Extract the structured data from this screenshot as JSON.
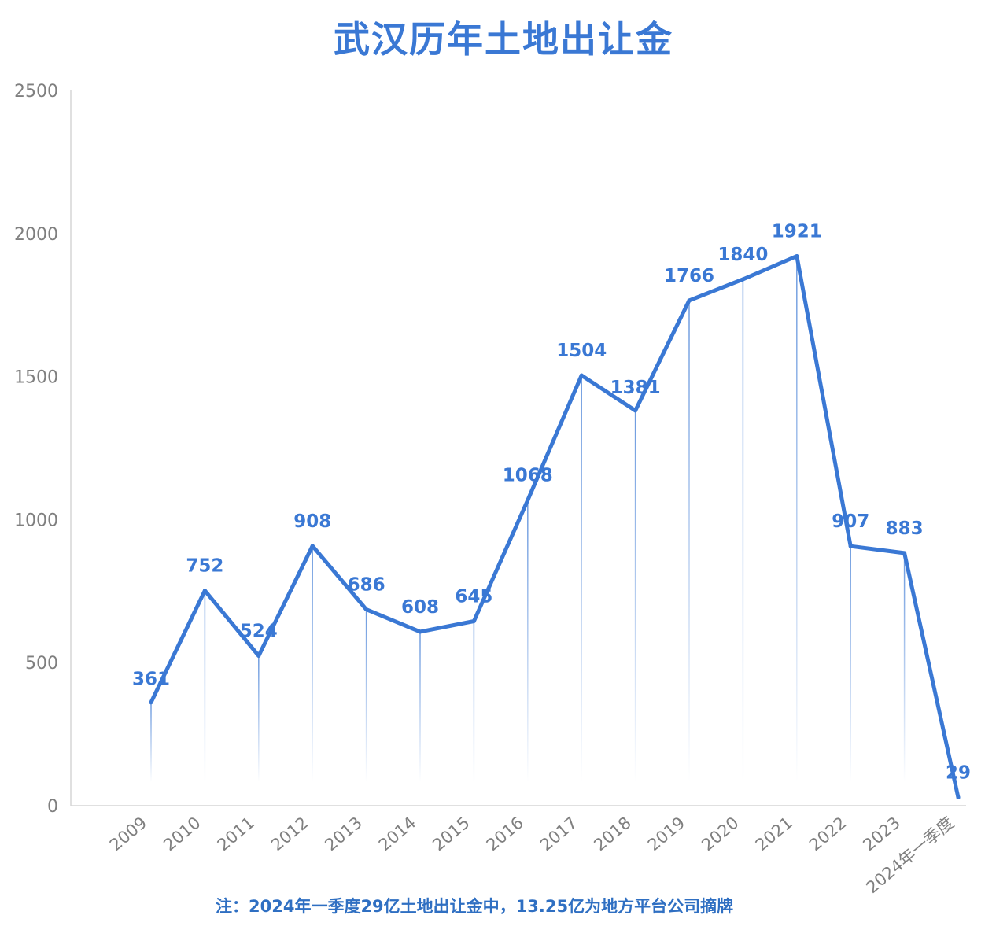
{
  "chart_data": {
    "type": "line",
    "title": "武汉历年土地出让金",
    "note": "注：2024年一季度29亿土地出让金中，13.25亿为地方平台公司摘牌",
    "categories": [
      "2009",
      "2010",
      "2011",
      "2012",
      "2013",
      "2014",
      "2015",
      "2016",
      "2017",
      "2018",
      "2019",
      "2020",
      "2021",
      "2022",
      "2023",
      "2024年一季度"
    ],
    "series": [
      {
        "values": [
          361,
          752,
          524,
          908,
          686,
          608,
          645,
          1068,
          1504,
          1381,
          1766,
          1840,
          1921,
          907,
          883,
          29
        ]
      }
    ],
    "data_labels": [
      "361",
      "752",
      "524",
      "908",
      "686",
      "608",
      "645",
      "1068",
      "1504",
      "1381",
      "1766",
      "1840",
      "1921",
      "907",
      "883",
      "29"
    ],
    "yticks": [
      "0",
      "500",
      "1000",
      "1500",
      "2000",
      "2500"
    ],
    "ylim": [
      0,
      2500
    ],
    "grid": false,
    "drop_lines": true,
    "colors": {
      "line": "#3a78d4",
      "label": "#3a78d4",
      "title": "#3a78d4",
      "axis": "#d6d6d6",
      "tick_text": "#7f7f7f"
    }
  }
}
